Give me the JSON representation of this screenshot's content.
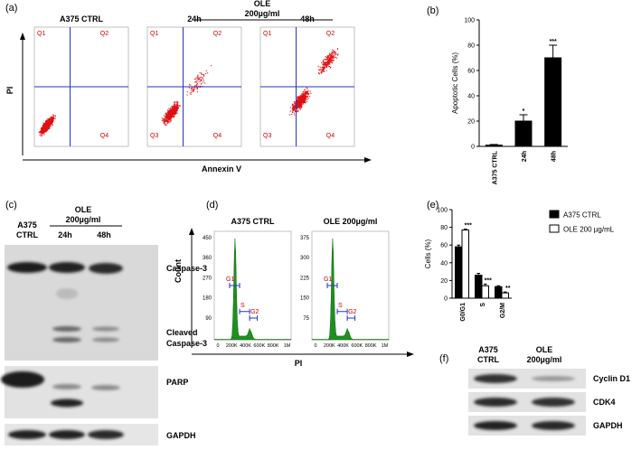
{
  "panels": {
    "a": {
      "label": "(a)",
      "group": "OLE",
      "dose": "200µg/ml",
      "y_axis": "PI",
      "x_axis": "Annexin V",
      "plots": [
        {
          "title": "A375 CTRL",
          "quadrants": [
            "Q1",
            "Q2",
            null,
            "Q4"
          ]
        },
        {
          "title": "24h",
          "quadrants": [
            "Q1",
            "Q2",
            "Q3",
            "Q4"
          ]
        },
        {
          "title": "48h",
          "quadrants": [
            "Q1",
            "Q2",
            "Q3",
            "Q4"
          ]
        }
      ]
    },
    "c": {
      "label": "(c)",
      "control": [
        "A375",
        "CTRL"
      ],
      "group": "OLE",
      "dose": "200µg/ml",
      "lanes": [
        "24h",
        "48h"
      ],
      "blots": {
        "caspase": "Caspase-3",
        "cleaved": [
          "Cleaved",
          "Caspase-3"
        ],
        "parp": "PARP",
        "gapdh": "GAPDH"
      }
    },
    "d": {
      "label": "(d)",
      "y_axis": "Count",
      "x_axis": "PI",
      "xticks": [
        "0",
        "200K",
        "400K",
        "600K",
        "800K",
        "1M"
      ],
      "gates": [
        "G1",
        "S",
        "G2"
      ],
      "plots": [
        {
          "title": "A375 CTRL",
          "yticks": [
            90,
            180,
            270,
            360,
            450
          ]
        },
        {
          "title": "OLE 200µg/ml",
          "yticks": [
            75,
            150,
            225,
            300,
            375
          ]
        }
      ]
    },
    "f": {
      "label": "(f)",
      "control": [
        "A375",
        "CTRL"
      ],
      "group": "OLE",
      "dose": "200µg/ml",
      "blots": [
        "Cyclin D1",
        "CDK4",
        "GAPDH"
      ]
    }
  },
  "chart_data": [
    {
      "type": "bar",
      "panel_label": "(b)",
      "y_label": "Apoptotic Cells (%)",
      "categories": [
        "A375 CTRL",
        "24h",
        "48h"
      ],
      "values": [
        1,
        20,
        70
      ],
      "errors": [
        0.5,
        5,
        10
      ],
      "significance": [
        null,
        "*",
        "***"
      ],
      "color": "#000000",
      "ylim": [
        0,
        100
      ],
      "yticks": [
        0,
        20,
        40,
        60,
        80,
        100
      ]
    },
    {
      "type": "bar",
      "panel_label": "(e)",
      "y_label": "Cells (%)",
      "categories": [
        "G0/G1",
        "S",
        "G2/M"
      ],
      "series": [
        {
          "name": "A375 CTRL",
          "color": "#000000",
          "values": [
            58,
            26,
            13
          ],
          "errors": [
            2,
            2,
            1
          ],
          "significance": [
            null,
            null,
            null
          ]
        },
        {
          "name": "OLE 200 µg/mL",
          "color": "#ffffff",
          "values": [
            77,
            14,
            6
          ],
          "errors": [
            1,
            2,
            1
          ],
          "significance": [
            "***",
            "***",
            "**"
          ]
        }
      ],
      "ylim": [
        0,
        100
      ],
      "yticks": [
        0,
        20,
        40,
        60,
        80,
        100
      ],
      "legend": "right"
    }
  ]
}
